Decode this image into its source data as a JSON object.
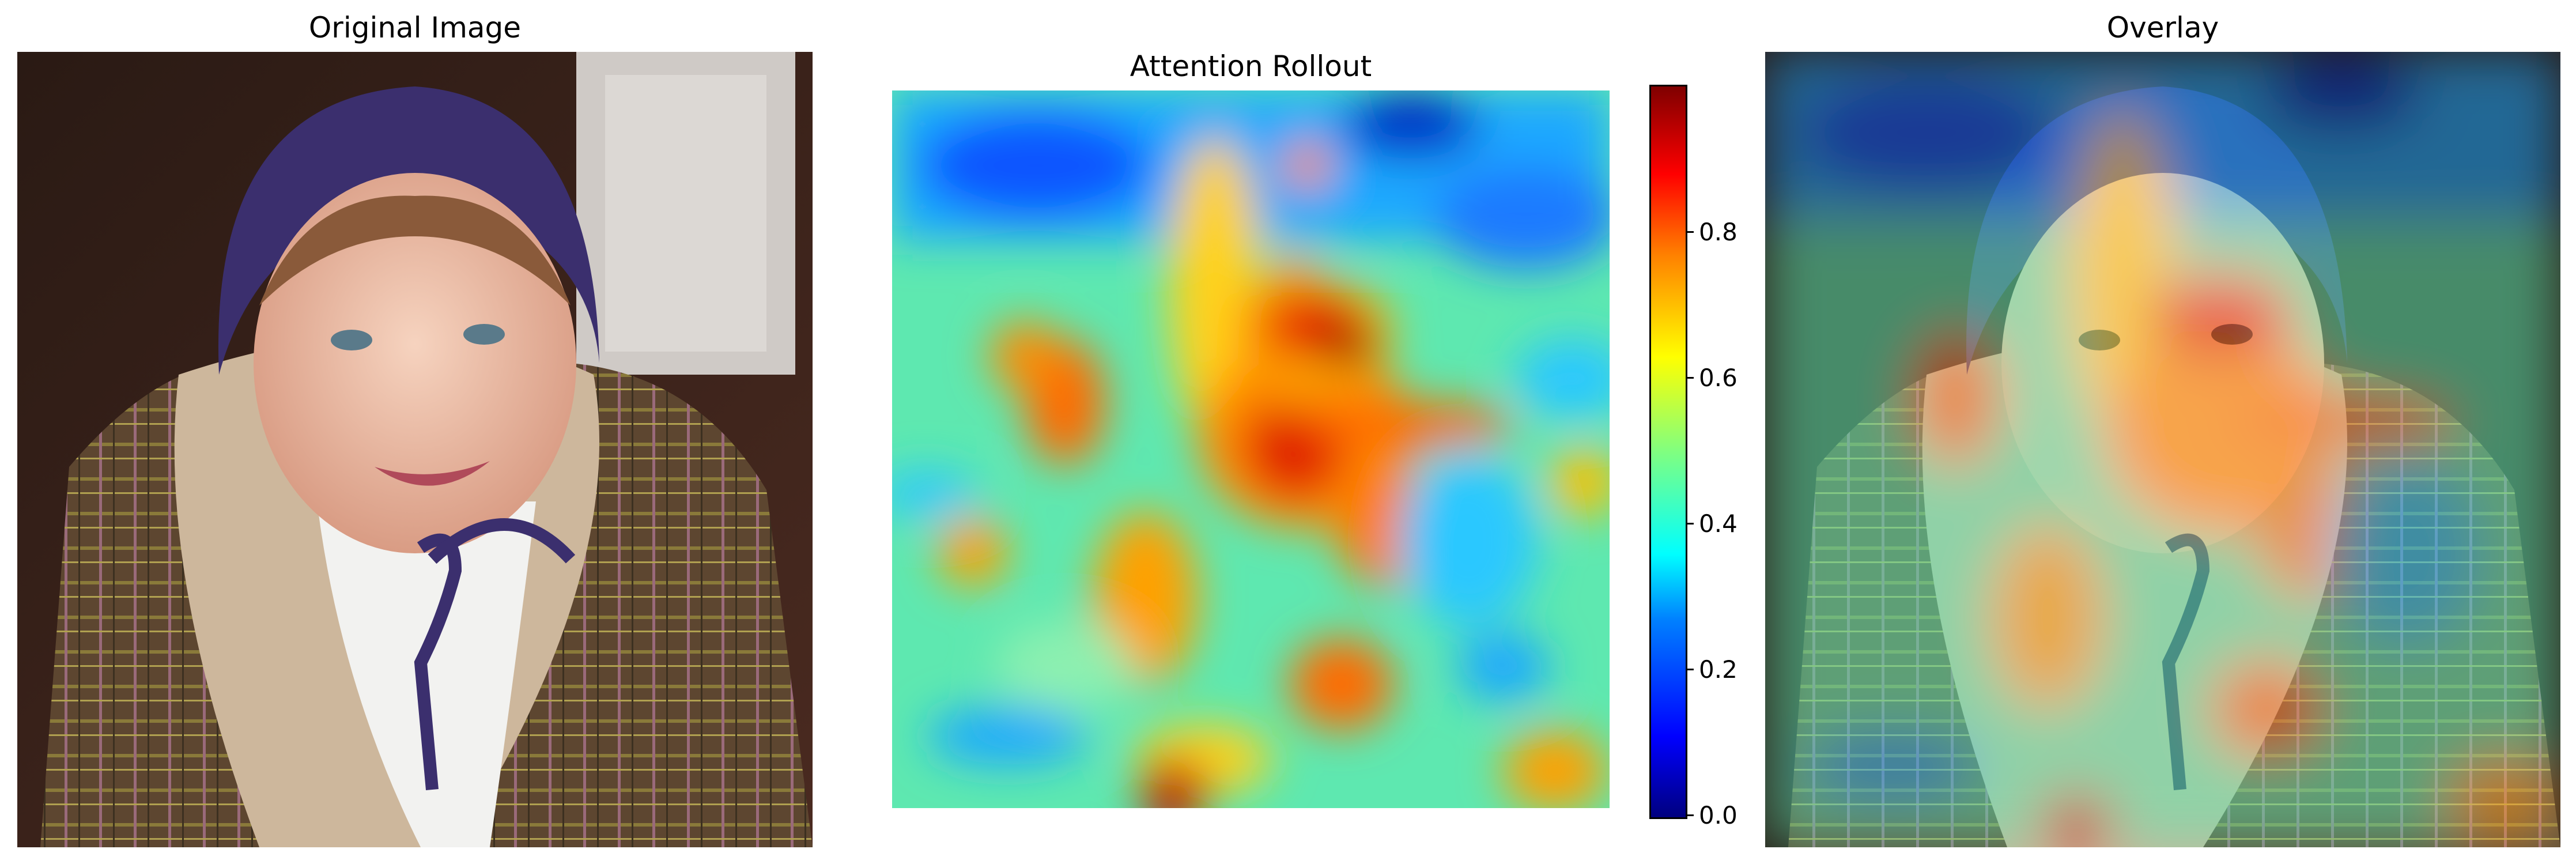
{
  "panels": {
    "original": {
      "title": "Original Image"
    },
    "attention": {
      "title": "Attention Rollout"
    },
    "overlay": {
      "title": "Overlay"
    }
  },
  "colorbar": {
    "colormap": "jet",
    "range": [
      0.0,
      1.0
    ],
    "ticks": [
      "0.0",
      "0.2",
      "0.4",
      "0.6",
      "0.8"
    ]
  },
  "colors": {
    "hat": "#3b2f6e",
    "coat": "#6b5132",
    "fleece": "#c9b49a",
    "skin": "#efc2a8",
    "background_door": "#d8d4d0"
  }
}
